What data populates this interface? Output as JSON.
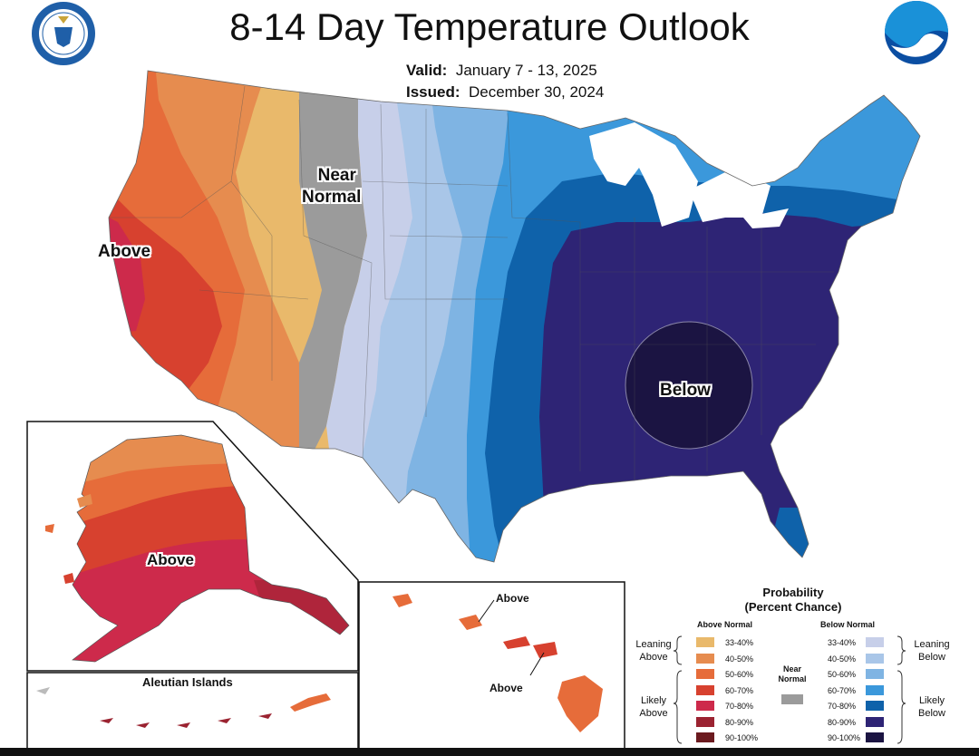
{
  "header": {
    "title": "8-14 Day Temperature Outlook",
    "valid_label": "Valid:",
    "valid_value": "January 7 - 13, 2025",
    "issued_label": "Issued:",
    "issued_value": "December 30, 2024"
  },
  "map_labels": {
    "above_west": "Above",
    "near_normal": [
      "Near",
      "Normal"
    ],
    "below_se": "Below",
    "alaska_above": "Above",
    "aleutian": "Aleutian Islands",
    "hawaii_above_1": "Above",
    "hawaii_above_2": "Above"
  },
  "legend": {
    "title": [
      "Probability",
      "(Percent Chance)"
    ],
    "above_header": "Above Normal",
    "below_header": "Below Normal",
    "near_normal": [
      "Near",
      "Normal"
    ],
    "near_normal_color": "#9b9b9b",
    "leaning_above": [
      "Leaning",
      "Above"
    ],
    "likely_above": [
      "Likely",
      "Above"
    ],
    "leaning_below": [
      "Leaning",
      "Below"
    ],
    "likely_below": [
      "Likely",
      "Below"
    ],
    "above": [
      {
        "range": "33-40%",
        "color": "#e9b96b"
      },
      {
        "range": "40-50%",
        "color": "#e68c4f"
      },
      {
        "range": "50-60%",
        "color": "#e66c3a"
      },
      {
        "range": "60-70%",
        "color": "#d7412f"
      },
      {
        "range": "70-80%",
        "color": "#cd2a4b"
      },
      {
        "range": "80-90%",
        "color": "#9b2331"
      },
      {
        "range": "90-100%",
        "color": "#6b1a1f"
      }
    ],
    "below": [
      {
        "range": "33-40%",
        "color": "#c7cfe9"
      },
      {
        "range": "40-50%",
        "color": "#a9c6e8"
      },
      {
        "range": "50-60%",
        "color": "#7fb4e3"
      },
      {
        "range": "60-70%",
        "color": "#3b98db"
      },
      {
        "range": "70-80%",
        "color": "#0f62aa"
      },
      {
        "range": "80-90%",
        "color": "#2e2475"
      },
      {
        "range": "90-100%",
        "color": "#1b1442"
      }
    ]
  }
}
